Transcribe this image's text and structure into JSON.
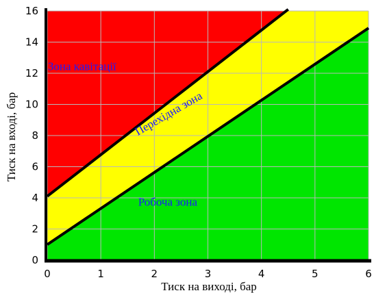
{
  "chart_data": {
    "type": "area",
    "xlabel": "Тиск на виході, бар",
    "ylabel": "Тиск на вході, бар",
    "xlim": [
      0,
      6
    ],
    "ylim": [
      0,
      16
    ],
    "x_ticks": [
      "0",
      "1",
      "2",
      "3",
      "4",
      "5",
      "6"
    ],
    "y_ticks": [
      "0",
      "2",
      "4",
      "6",
      "8",
      "10",
      "12",
      "14",
      "16"
    ],
    "grid": true,
    "boundaries": [
      {
        "name": "upper",
        "points": [
          [
            0,
            4.1
          ],
          [
            4.5,
            16.1
          ]
        ]
      },
      {
        "name": "lower",
        "points": [
          [
            0,
            1.0
          ],
          [
            6,
            14.9
          ]
        ]
      }
    ],
    "zones": [
      {
        "label": "Зона кавітації",
        "color": "#ff0000",
        "label_color": "#1a1aff",
        "label_at": [
          0.65,
          12.2
        ],
        "label_angle": 0
      },
      {
        "label": "Перехідна зона",
        "color": "#ffff00",
        "label_color": "#1a1aff",
        "label_at": [
          2.3,
          9.2
        ],
        "label_angle": -30
      },
      {
        "label": "Робоча зона",
        "color": "#00e600",
        "label_color": "#1a1aff",
        "label_at": [
          2.25,
          3.5
        ],
        "label_angle": 0
      }
    ]
  }
}
